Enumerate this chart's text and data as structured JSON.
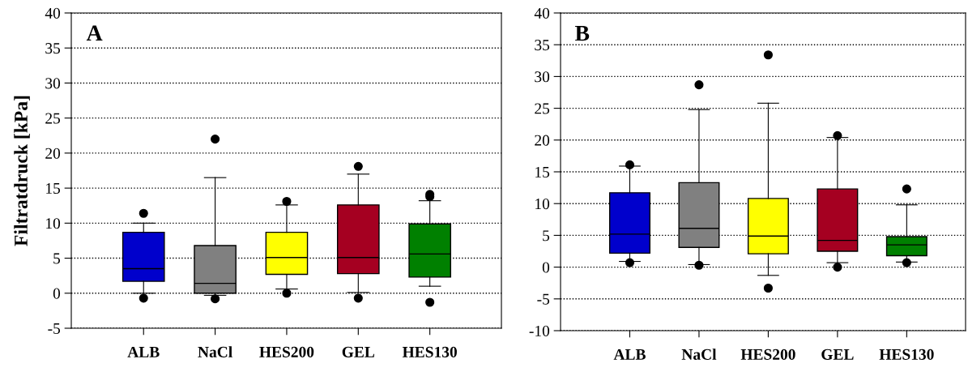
{
  "chart_data": [
    {
      "type": "box",
      "annotations": [
        "A"
      ],
      "ylabel": "Filtratdruck [kPa]",
      "categories": [
        "ALB",
        "NaCl",
        "HES200",
        "GEL",
        "HES130"
      ],
      "colors": [
        "#0000cc",
        "#808080",
        "#ffff00",
        "#a50021",
        "#008000"
      ],
      "boxes": [
        {
          "low": 0,
          "q1": 1.7,
          "median": 3.5,
          "q3": 8.7,
          "high": 10,
          "outliers": [
            11.4,
            -0.7
          ]
        },
        {
          "low": -0.3,
          "q1": 0,
          "median": 1.4,
          "q3": 6.8,
          "high": 16.5,
          "outliers": [
            22,
            -0.8
          ]
        },
        {
          "low": 0.6,
          "q1": 2.7,
          "median": 5.1,
          "q3": 8.7,
          "high": 12.6,
          "outliers": [
            13.1,
            0
          ]
        },
        {
          "low": 0.1,
          "q1": 2.8,
          "median": 5.1,
          "q3": 12.6,
          "high": 17,
          "outliers": [
            18.1,
            -0.7
          ]
        },
        {
          "low": 1.0,
          "q1": 2.3,
          "median": 5.6,
          "q3": 9.9,
          "high": 13.2,
          "outliers": [
            13.8,
            14.1,
            -1.3
          ]
        }
      ],
      "ylim": [
        -5,
        40
      ],
      "yticks": [
        -5,
        0,
        5,
        10,
        15,
        20,
        25,
        30,
        35,
        40
      ],
      "grid": "y"
    },
    {
      "type": "box",
      "annotations": [
        "B"
      ],
      "categories": [
        "ALB",
        "NaCl",
        "HES200",
        "GEL",
        "HES130"
      ],
      "colors": [
        "#0000cc",
        "#808080",
        "#ffff00",
        "#a50021",
        "#008000"
      ],
      "boxes": [
        {
          "low": 0.9,
          "q1": 2.2,
          "median": 5.2,
          "q3": 11.7,
          "high": 15.9,
          "outliers": [
            16.1,
            0.7
          ]
        },
        {
          "low": 0.4,
          "q1": 3.1,
          "median": 6.1,
          "q3": 13.3,
          "high": 24.8,
          "outliers": [
            28.7,
            0.3
          ]
        },
        {
          "low": -1.3,
          "q1": 2.1,
          "median": 4.9,
          "q3": 10.8,
          "high": 25.8,
          "outliers": [
            33.4,
            -3.3
          ]
        },
        {
          "low": 0.7,
          "q1": 2.5,
          "median": 4.2,
          "q3": 12.3,
          "high": 20.4,
          "outliers": [
            20.7,
            0
          ]
        },
        {
          "low": 0.8,
          "q1": 1.8,
          "median": 3.5,
          "q3": 4.8,
          "high": 9.8,
          "outliers": [
            12.3,
            0.7
          ]
        }
      ],
      "ylim": [
        -10,
        40
      ],
      "yticks": [
        -10,
        -5,
        0,
        5,
        10,
        15,
        20,
        25,
        30,
        35,
        40
      ],
      "grid": "y"
    }
  ]
}
